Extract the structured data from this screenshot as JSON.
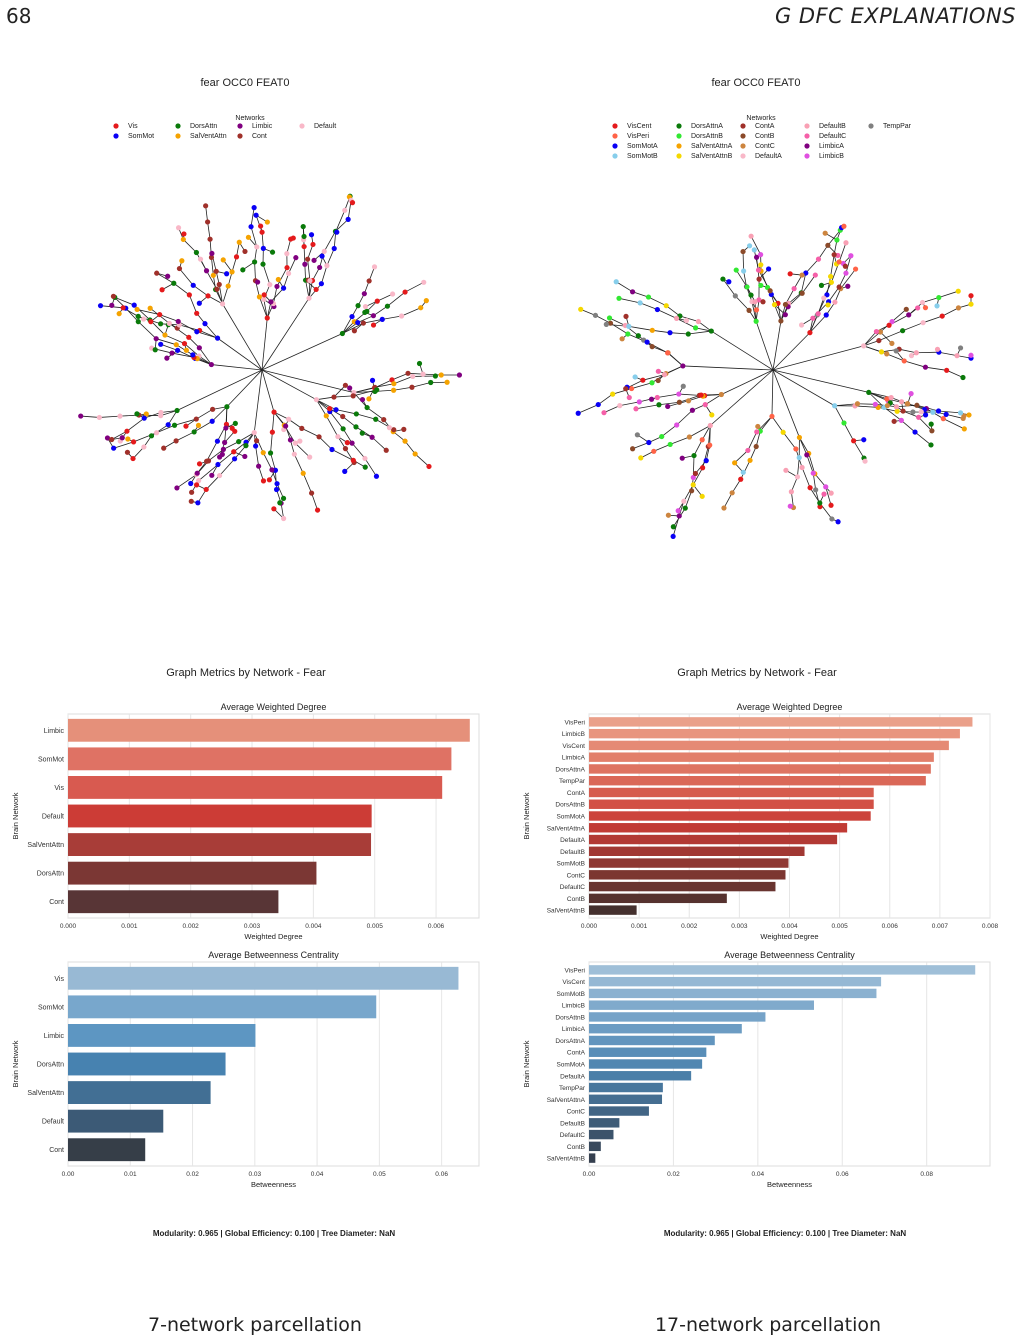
{
  "page": {
    "number": "68",
    "section_title": "G   DFC EXPLANATIONS"
  },
  "panels": [
    {
      "tree_title": "fear OCC0 FEAT0",
      "legend_title": "Networks",
      "legend": [
        {
          "name": "Vis",
          "color": "#e41a1c"
        },
        {
          "name": "SomMot",
          "color": "#0a00f5"
        },
        {
          "name": "DorsAttn",
          "color": "#0a7a0a"
        },
        {
          "name": "SalVentAttn",
          "color": "#f5a300"
        },
        {
          "name": "Limbic",
          "color": "#800080"
        },
        {
          "name": "Cont",
          "color": "#a0302a"
        },
        {
          "name": "Default",
          "color": "#f9b8c8"
        }
      ],
      "metrics_title": "Graph Metrics by Network - Fear",
      "degree_chart": {
        "type": "bar",
        "title": "Average Weighted Degree",
        "xlabel": "Weighted Degree",
        "ylabel": "Brain Network",
        "xlim": [
          0,
          0.0067
        ],
        "xticks": [
          "0.000",
          "0.001",
          "0.002",
          "0.003",
          "0.004",
          "0.005",
          "0.006"
        ],
        "xtick_values": [
          0,
          0.001,
          0.002,
          0.003,
          0.004,
          0.005,
          0.006
        ],
        "categories": [
          "Limbic",
          "SomMot",
          "Vis",
          "Default",
          "SalVentAttn",
          "DorsAttn",
          "Cont"
        ],
        "values": [
          0.00655,
          0.00625,
          0.0061,
          0.00495,
          0.00494,
          0.00405,
          0.00343
        ],
        "colors": [
          "#e5907a",
          "#df7264",
          "#d85a50",
          "#cc3c36",
          "#a83d38",
          "#7b3734",
          "#583536"
        ]
      },
      "betweenness_chart": {
        "type": "bar",
        "title": "Average Betweenness Centrality",
        "xlabel": "Betweenness",
        "ylabel": "Brain Network",
        "xlim": [
          0,
          0.066
        ],
        "xticks": [
          "0.00",
          "0.01",
          "0.02",
          "0.03",
          "0.04",
          "0.05",
          "0.06"
        ],
        "xtick_values": [
          0,
          0.01,
          0.02,
          0.03,
          0.04,
          0.05,
          0.06
        ],
        "categories": [
          "Vis",
          "SomMot",
          "Limbic",
          "DorsAttn",
          "SalVentAttn",
          "Default",
          "Cont"
        ],
        "values": [
          0.0627,
          0.0495,
          0.0301,
          0.0253,
          0.0229,
          0.0153,
          0.0124
        ],
        "colors": [
          "#98b9d4",
          "#78a7cc",
          "#5d96c2",
          "#4782b0",
          "#426f94",
          "#3c5a76",
          "#363e48"
        ]
      },
      "footer": "Modularity: 0.965   |   Global Efficiency: 0.100   |   Tree Diameter: NaN",
      "caption": "7-network parcellation"
    },
    {
      "tree_title": "fear OCC0 FEAT0",
      "legend_title": "Networks",
      "legend": [
        {
          "name": "VisCent",
          "color": "#e41a1c"
        },
        {
          "name": "VisPeri",
          "color": "#ff6347"
        },
        {
          "name": "SomMotA",
          "color": "#0a00f5"
        },
        {
          "name": "SomMotB",
          "color": "#87ceeb"
        },
        {
          "name": "DorsAttnA",
          "color": "#0a7a0a"
        },
        {
          "name": "DorsAttnB",
          "color": "#32e832"
        },
        {
          "name": "SalVentAttnA",
          "color": "#f5a300"
        },
        {
          "name": "SalVentAttnB",
          "color": "#f5d800"
        },
        {
          "name": "ContA",
          "color": "#a0302a"
        },
        {
          "name": "ContB",
          "color": "#8b4a2a"
        },
        {
          "name": "ContC",
          "color": "#cd853f"
        },
        {
          "name": "DefaultA",
          "color": "#f9b8c8"
        },
        {
          "name": "DefaultB",
          "color": "#f9a0b4"
        },
        {
          "name": "DefaultC",
          "color": "#f560a8"
        },
        {
          "name": "LimbicA",
          "color": "#800080"
        },
        {
          "name": "LimbicB",
          "color": "#e050e0"
        },
        {
          "name": "TempPar",
          "color": "#808080"
        }
      ],
      "metrics_title": "Graph Metrics by Network - Fear",
      "degree_chart": {
        "type": "bar",
        "title": "Average Weighted Degree",
        "xlabel": "Weighted Degree",
        "ylabel": "Brain Network",
        "xlim": [
          0,
          0.008
        ],
        "xticks": [
          "0.000",
          "0.001",
          "0.002",
          "0.003",
          "0.004",
          "0.005",
          "0.006",
          "0.007",
          "0.008"
        ],
        "xtick_values": [
          0,
          0.001,
          0.002,
          0.003,
          0.004,
          0.005,
          0.006,
          0.007,
          0.008
        ],
        "categories": [
          "VisPeri",
          "LimbicB",
          "VisCent",
          "LimbicA",
          "DorsAttnA",
          "TempPar",
          "ContA",
          "DorsAttnB",
          "SomMotA",
          "SalVentAttnA",
          "DefaultA",
          "DefaultB",
          "SomMotB",
          "ContC",
          "DefaultC",
          "ContB",
          "SalVentAttnB"
        ],
        "values": [
          0.00765,
          0.0074,
          0.00718,
          0.00688,
          0.00682,
          0.00672,
          0.00568,
          0.00568,
          0.00562,
          0.00515,
          0.00495,
          0.0043,
          0.00398,
          0.00392,
          0.00372,
          0.00275,
          0.00095
        ],
        "colors": [
          "#eaa08a",
          "#e8957f",
          "#e58a75",
          "#e27f6b",
          "#de7462",
          "#da6858",
          "#d65c4e",
          "#d25045",
          "#cc443c",
          "#c13b35",
          "#b23934",
          "#a13833",
          "#8f3732",
          "#7c3631",
          "#693430",
          "#56322f",
          "#44302e"
        ]
      },
      "betweenness_chart": {
        "type": "bar",
        "title": "Average Betweenness Centrality",
        "xlabel": "Betweenness",
        "ylabel": "Brain Network",
        "xlim": [
          0,
          0.095
        ],
        "xticks": [
          "0.00",
          "0.02",
          "0.04",
          "0.06",
          "0.08"
        ],
        "xtick_values": [
          0,
          0.02,
          0.04,
          0.06,
          0.08
        ],
        "categories": [
          "VisPeri",
          "VisCent",
          "SomMotB",
          "LimbicB",
          "DorsAttnB",
          "LimbicA",
          "DorsAttnA",
          "ContA",
          "SomMotA",
          "DefaultA",
          "TempPar",
          "SalVentAttnA",
          "ContC",
          "DefaultB",
          "DefaultC",
          "ContB",
          "SalVentAttnB"
        ],
        "values": [
          0.0915,
          0.0692,
          0.0681,
          0.0533,
          0.0418,
          0.0362,
          0.0298,
          0.0278,
          0.0268,
          0.0242,
          0.0175,
          0.0173,
          0.0142,
          0.0072,
          0.0058,
          0.0028,
          0.0015
        ],
        "colors": [
          "#9fbfd8",
          "#95b8d4",
          "#8bb1d0",
          "#80aacc",
          "#76a3c8",
          "#6c9cc3",
          "#6295be",
          "#598eb8",
          "#5187b1",
          "#4b7fa8",
          "#48779d",
          "#456e91",
          "#426585",
          "#3e5c78",
          "#3b536b",
          "#38495d",
          "#353f4f"
        ]
      },
      "footer": "Modularity: 0.965   |   Global Efficiency: 0.100   |   Tree Diameter: NaN",
      "caption": "17-network parcellation"
    }
  ]
}
